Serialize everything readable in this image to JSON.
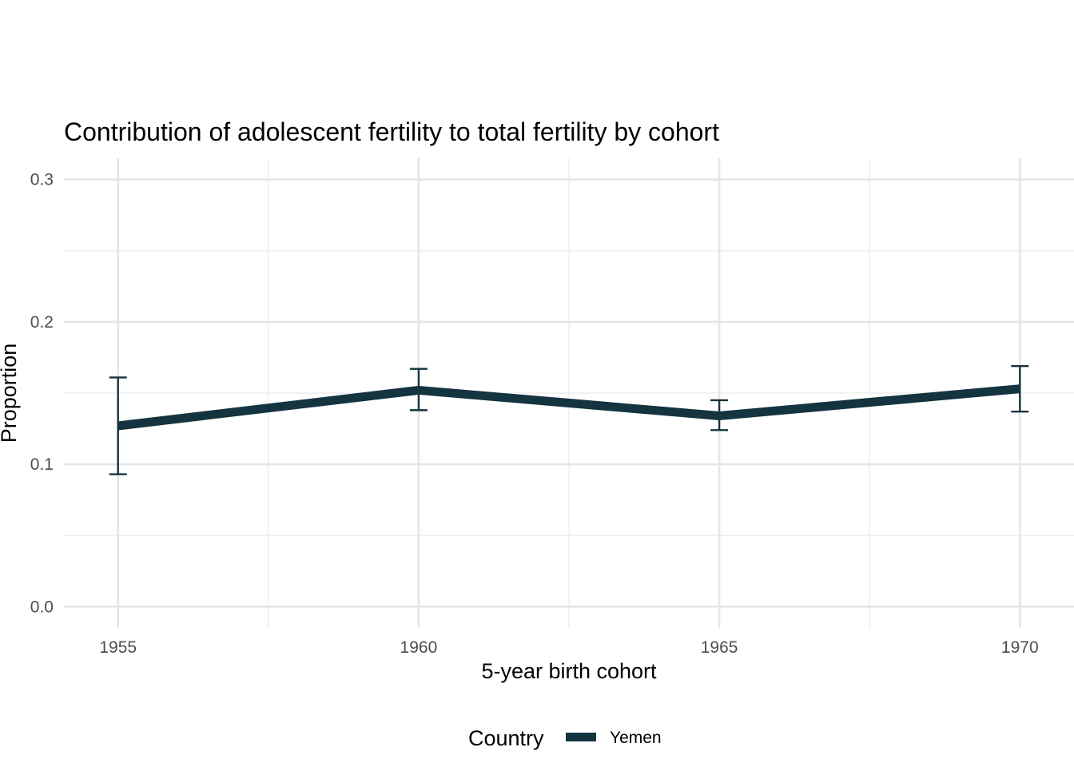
{
  "chart_data": {
    "type": "line",
    "title": "Contribution of adolescent fertility to total fertility by cohort",
    "xlabel": "5-year birth cohort",
    "ylabel": "Proportion",
    "x": [
      1955,
      1960,
      1965,
      1970
    ],
    "x_tick_labels": [
      "1955",
      "1960",
      "1965",
      "1970"
    ],
    "y_tick_values": [
      0.0,
      0.1,
      0.2,
      0.3
    ],
    "y_tick_labels": [
      "0.0",
      "0.1",
      "0.2",
      "0.3"
    ],
    "xlim": [
      1954.1,
      1970.9
    ],
    "ylim": [
      -0.015,
      0.315
    ],
    "grid": true,
    "legend": {
      "title": "Country",
      "position": "bottom"
    },
    "series": [
      {
        "name": "Yemen",
        "color": "#14343f",
        "values": [
          0.127,
          0.152,
          0.134,
          0.153
        ],
        "lower": [
          0.093,
          0.138,
          0.124,
          0.137
        ],
        "upper": [
          0.161,
          0.167,
          0.145,
          0.169
        ]
      }
    ]
  }
}
